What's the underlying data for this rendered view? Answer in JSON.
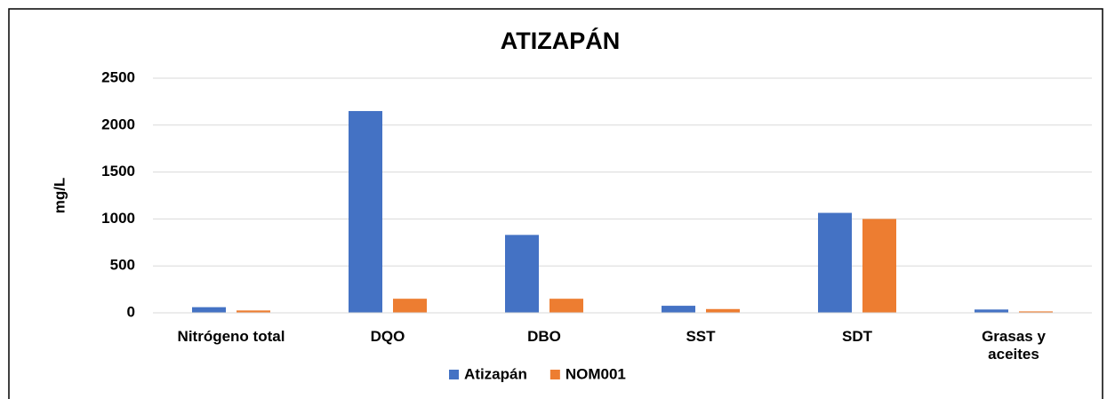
{
  "chart_data": {
    "type": "bar",
    "title": "ATIZAPÁN",
    "y_label": "mg/L",
    "categories": [
      "Nitrógeno total",
      "DQO",
      "DBO",
      "SST",
      "SDT",
      "Grasas y aceites"
    ],
    "series": [
      {
        "name": "Atizapán",
        "color": "#4472c4",
        "values": [
          60,
          2150,
          830,
          75,
          1065,
          35
        ]
      },
      {
        "name": "NOM001",
        "color": "#ed7d31",
        "values": [
          25,
          150,
          150,
          40,
          1000,
          15
        ]
      }
    ],
    "ylim": [
      0,
      2500
    ],
    "yticks": [
      0,
      500,
      1000,
      1500,
      2000,
      2500
    ],
    "grid": true,
    "legend": "bottom"
  }
}
